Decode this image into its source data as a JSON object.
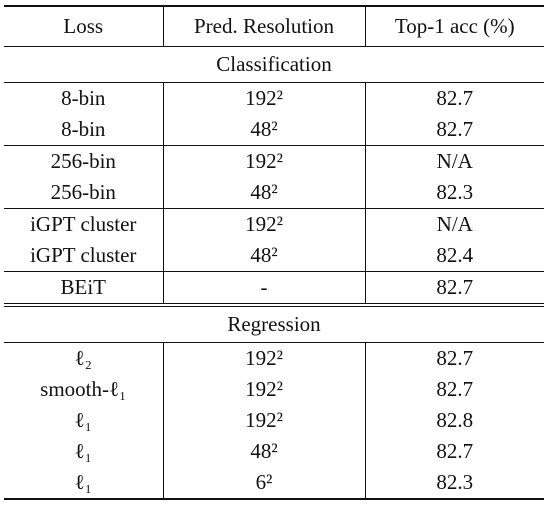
{
  "table": {
    "header": [
      "Loss",
      "Pred. Resolution",
      "Top-1 acc (%)"
    ],
    "sections": [
      {
        "title": "Classification",
        "groups": [
          [
            [
              "8-bin",
              "192²",
              "82.7"
            ],
            [
              "8-bin",
              "48²",
              "82.7"
            ]
          ],
          [
            [
              "256-bin",
              "192²",
              "N/A"
            ],
            [
              "256-bin",
              "48²",
              "82.3"
            ]
          ],
          [
            [
              "iGPT cluster",
              "192²",
              "N/A"
            ],
            [
              "iGPT cluster",
              "48²",
              "82.4"
            ]
          ],
          [
            [
              "BEiT",
              "-",
              "82.7"
            ]
          ]
        ]
      },
      {
        "title": "Regression",
        "groups": [
          [
            [
              "ℓ₂",
              "192²",
              "82.7"
            ],
            [
              "smooth-ℓ₁",
              "192²",
              "82.7"
            ],
            [
              "ℓ₁",
              "192²",
              "82.8"
            ],
            [
              "ℓ₁",
              "48²",
              "82.7"
            ],
            [
              "ℓ₁",
              "6²",
              "82.3"
            ]
          ]
        ]
      }
    ]
  }
}
